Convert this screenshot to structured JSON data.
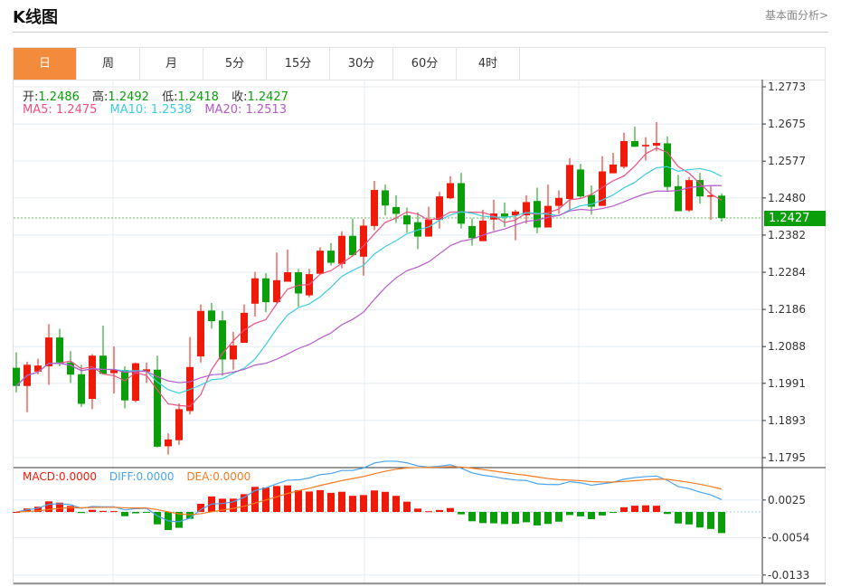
{
  "header": {
    "title": "K线图",
    "link": "基本面分析>"
  },
  "tabs": [
    "日",
    "周",
    "月",
    "5分",
    "15分",
    "30分",
    "60分",
    "4时"
  ],
  "active_tab": 0,
  "ohlc": {
    "open_label": "开:",
    "open": "1.2486",
    "high_label": "高:",
    "high": "1.2492",
    "low_label": "低:",
    "low": "1.2418",
    "close_label": "收:",
    "close": "1.2427"
  },
  "ma": {
    "ma5": "MA5: 1.2475",
    "ma10": "MA10: 1.2538",
    "ma20": "MA20: 1.2513"
  },
  "macd_legend": {
    "macd": "MACD:0.0000",
    "diff": "DIFF:0.0000",
    "dea": "DEA:0.0000"
  },
  "last_price": "1.2427",
  "colors": {
    "up": "#f01a0a",
    "down": "#0a9e0a",
    "ma5": "#ee4f7e",
    "ma10": "#3ccde0",
    "ma20": "#b65acb",
    "diff": "#4aa3f0",
    "dea": "#f57a20",
    "accent": "#f28c3c"
  },
  "chart_data": [
    {
      "type": "candlestick",
      "title": "K线图",
      "ylim": [
        1.1795,
        1.2773
      ],
      "yticks": [
        "1.2773",
        "1.2675",
        "1.2577",
        "1.2480",
        "1.2382",
        "1.2284",
        "1.2186",
        "1.2088",
        "1.1991",
        "1.1893",
        "1.1795"
      ],
      "series_fields": [
        "open",
        "high",
        "low",
        "close"
      ],
      "candles": [
        [
          1.2032,
          1.2073,
          1.1967,
          1.1984
        ],
        [
          1.1984,
          1.2048,
          1.1915,
          1.204
        ],
        [
          1.2022,
          1.2056,
          1.2015,
          1.2038
        ],
        [
          1.2036,
          1.2147,
          1.1987,
          1.2112
        ],
        [
          1.2112,
          1.2135,
          1.2036,
          1.2046
        ],
        [
          1.2046,
          1.2076,
          1.1992,
          1.2014
        ],
        [
          1.2015,
          1.204,
          1.1929,
          1.1937
        ],
        [
          1.195,
          1.2068,
          1.1923,
          1.2064
        ],
        [
          1.2064,
          1.2143,
          1.2015,
          1.2016
        ],
        [
          1.2018,
          1.2088,
          1.1964,
          1.2026
        ],
        [
          1.2026,
          1.2036,
          1.1925,
          1.1946
        ],
        [
          1.1945,
          1.2046,
          1.1941,
          1.2044
        ],
        [
          1.2022,
          1.2046,
          1.1992,
          1.2028
        ],
        [
          1.2027,
          1.2064,
          1.1822,
          1.1824
        ],
        [
          1.1825,
          1.1859,
          1.1803,
          1.1843
        ],
        [
          1.1841,
          1.1938,
          1.1829,
          1.1923
        ],
        [
          1.1918,
          1.2113,
          1.1909,
          1.2034
        ],
        [
          1.2062,
          1.2199,
          1.2046,
          1.2182
        ],
        [
          1.2183,
          1.2203,
          1.2135,
          1.2155
        ],
        [
          1.2157,
          1.2182,
          1.2011,
          1.2054
        ],
        [
          1.2054,
          1.2127,
          1.2027,
          1.2091
        ],
        [
          1.2098,
          1.2199,
          1.2098,
          1.2177
        ],
        [
          1.2201,
          1.2285,
          1.2167,
          1.2268
        ],
        [
          1.2268,
          1.2282,
          1.2179,
          1.2205
        ],
        [
          1.2205,
          1.2336,
          1.2203,
          1.2263
        ],
        [
          1.2259,
          1.2344,
          1.2259,
          1.2284
        ],
        [
          1.2284,
          1.2293,
          1.2193,
          1.2228
        ],
        [
          1.2223,
          1.2293,
          1.2218,
          1.2279
        ],
        [
          1.228,
          1.235,
          1.2279,
          1.2341
        ],
        [
          1.2341,
          1.2361,
          1.2302,
          1.2309
        ],
        [
          1.2306,
          1.2392,
          1.2294,
          1.238
        ],
        [
          1.238,
          1.2426,
          1.2325,
          1.2329
        ],
        [
          1.2325,
          1.2424,
          1.2275,
          1.2407
        ],
        [
          1.2406,
          1.2525,
          1.2395,
          1.2501
        ],
        [
          1.25,
          1.2515,
          1.2434,
          1.246
        ],
        [
          1.2456,
          1.2487,
          1.2414,
          1.2438
        ],
        [
          1.2434,
          1.2455,
          1.2388,
          1.241
        ],
        [
          1.2416,
          1.2442,
          1.2345,
          1.2378
        ],
        [
          1.2378,
          1.2457,
          1.2378,
          1.2423
        ],
        [
          1.2422,
          1.2496,
          1.2399,
          1.2484
        ],
        [
          1.2479,
          1.2537,
          1.2477,
          1.2519
        ],
        [
          1.2519,
          1.2546,
          1.2399,
          1.2412
        ],
        [
          1.2406,
          1.2426,
          1.2354,
          1.2374
        ],
        [
          1.2366,
          1.2449,
          1.2366,
          1.242
        ],
        [
          1.2423,
          1.2475,
          1.2394,
          1.2439
        ],
        [
          1.2439,
          1.2468,
          1.2404,
          1.2431
        ],
        [
          1.2434,
          1.2449,
          1.2368,
          1.2444
        ],
        [
          1.2434,
          1.2487,
          1.2412,
          1.2469
        ],
        [
          1.2472,
          1.2507,
          1.2387,
          1.2402
        ],
        [
          1.2402,
          1.2515,
          1.2402,
          1.2459
        ],
        [
          1.2459,
          1.25,
          1.2438,
          1.248
        ],
        [
          1.2477,
          1.2585,
          1.2449,
          1.2567
        ],
        [
          1.2555,
          1.257,
          1.2477,
          1.2484
        ],
        [
          1.2488,
          1.2513,
          1.2436,
          1.2457
        ],
        [
          1.2459,
          1.259,
          1.2459,
          1.255
        ],
        [
          1.2545,
          1.2599,
          1.2545,
          1.2568
        ],
        [
          1.2562,
          1.2652,
          1.2557,
          1.263
        ],
        [
          1.263,
          1.2668,
          1.2614,
          1.2615
        ],
        [
          1.2616,
          1.264,
          1.2579,
          1.262
        ],
        [
          1.2618,
          1.268,
          1.2603,
          1.2625
        ],
        [
          1.2624,
          1.2642,
          1.2497,
          1.2509
        ],
        [
          1.2511,
          1.2541,
          1.2445,
          1.2445
        ],
        [
          1.2447,
          1.2535,
          1.2443,
          1.2527
        ],
        [
          1.2527,
          1.2546,
          1.2465,
          1.2484
        ],
        [
          1.2483,
          1.2511,
          1.2422,
          1.2487
        ],
        [
          1.2486,
          1.2492,
          1.2418,
          1.2427
        ]
      ],
      "moving_averages": [
        5,
        10,
        20
      ]
    },
    {
      "type": "bar+line",
      "title": "MACD",
      "yticks": [
        "0.0025",
        "-0.0054",
        "-0.0133"
      ],
      "params": [
        12,
        26,
        9
      ]
    }
  ]
}
